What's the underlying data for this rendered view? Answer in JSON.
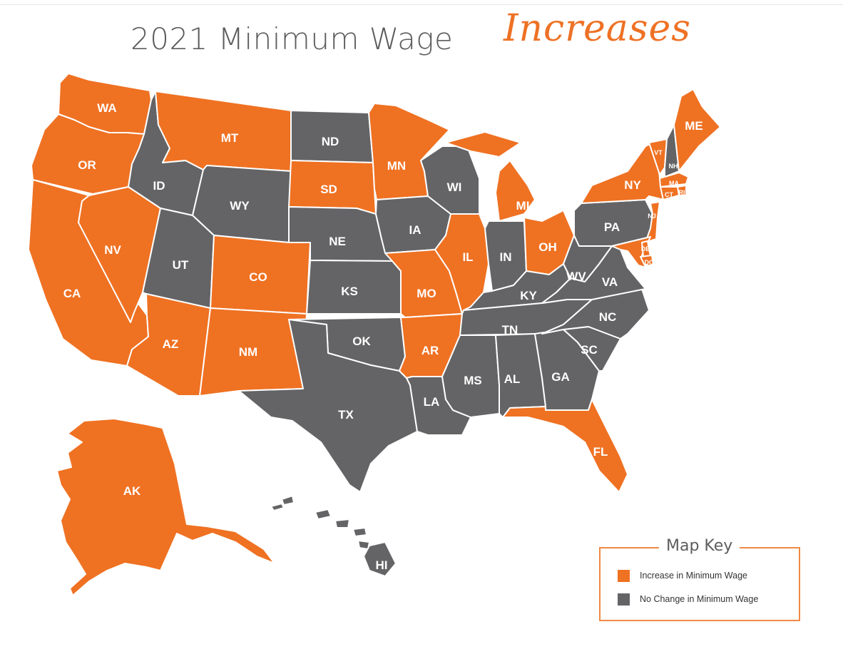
{
  "title": {
    "main": "2021 Minimum Wage",
    "accent": "Increases"
  },
  "colors": {
    "increase": "#ef7122",
    "no_change": "#646466",
    "text": "#5d5d5f"
  },
  "legend": {
    "title": "Map Key",
    "items": [
      {
        "label": "Increase in Minimum Wage",
        "status": "increase"
      },
      {
        "label": "No Change in Minimum Wage",
        "status": "no_change"
      }
    ]
  },
  "states": [
    {
      "abbr": "WA",
      "status": "increase"
    },
    {
      "abbr": "OR",
      "status": "increase"
    },
    {
      "abbr": "CA",
      "status": "increase"
    },
    {
      "abbr": "NV",
      "status": "increase"
    },
    {
      "abbr": "ID",
      "status": "no_change"
    },
    {
      "abbr": "MT",
      "status": "increase"
    },
    {
      "abbr": "WY",
      "status": "no_change"
    },
    {
      "abbr": "UT",
      "status": "no_change"
    },
    {
      "abbr": "AZ",
      "status": "increase"
    },
    {
      "abbr": "CO",
      "status": "increase"
    },
    {
      "abbr": "NM",
      "status": "increase"
    },
    {
      "abbr": "ND",
      "status": "no_change"
    },
    {
      "abbr": "SD",
      "status": "increase"
    },
    {
      "abbr": "NE",
      "status": "no_change"
    },
    {
      "abbr": "KS",
      "status": "no_change"
    },
    {
      "abbr": "OK",
      "status": "no_change"
    },
    {
      "abbr": "TX",
      "status": "no_change"
    },
    {
      "abbr": "MN",
      "status": "increase"
    },
    {
      "abbr": "IA",
      "status": "no_change"
    },
    {
      "abbr": "MO",
      "status": "increase"
    },
    {
      "abbr": "AR",
      "status": "increase"
    },
    {
      "abbr": "LA",
      "status": "no_change"
    },
    {
      "abbr": "WI",
      "status": "no_change"
    },
    {
      "abbr": "IL",
      "status": "increase"
    },
    {
      "abbr": "MI",
      "status": "increase"
    },
    {
      "abbr": "IN",
      "status": "no_change"
    },
    {
      "abbr": "OH",
      "status": "increase"
    },
    {
      "abbr": "KY",
      "status": "no_change"
    },
    {
      "abbr": "TN",
      "status": "no_change"
    },
    {
      "abbr": "MS",
      "status": "no_change"
    },
    {
      "abbr": "AL",
      "status": "no_change"
    },
    {
      "abbr": "GA",
      "status": "no_change"
    },
    {
      "abbr": "FL",
      "status": "increase"
    },
    {
      "abbr": "SC",
      "status": "no_change"
    },
    {
      "abbr": "NC",
      "status": "no_change"
    },
    {
      "abbr": "VA",
      "status": "no_change"
    },
    {
      "abbr": "WV",
      "status": "no_change"
    },
    {
      "abbr": "PA",
      "status": "no_change"
    },
    {
      "abbr": "NY",
      "status": "increase"
    },
    {
      "abbr": "VT",
      "status": "increase"
    },
    {
      "abbr": "NH",
      "status": "no_change"
    },
    {
      "abbr": "ME",
      "status": "increase"
    },
    {
      "abbr": "MA",
      "status": "increase"
    },
    {
      "abbr": "RI",
      "status": "increase"
    },
    {
      "abbr": "CT",
      "status": "increase"
    },
    {
      "abbr": "NJ",
      "status": "increase"
    },
    {
      "abbr": "DE",
      "status": "increase"
    },
    {
      "abbr": "MD",
      "status": "increase"
    },
    {
      "abbr": "DC",
      "status": "increase"
    },
    {
      "abbr": "AK",
      "status": "increase"
    },
    {
      "abbr": "HI",
      "status": "no_change"
    }
  ]
}
